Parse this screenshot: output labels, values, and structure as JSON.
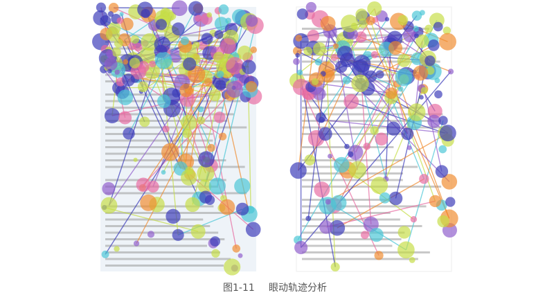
{
  "caption": {
    "figure": "图1-11",
    "title": "眼动轨迹分析"
  }
}
